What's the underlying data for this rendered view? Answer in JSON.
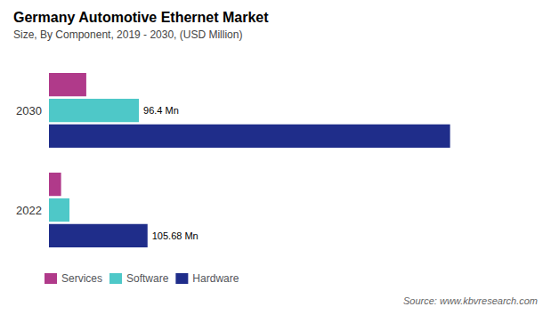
{
  "chart_data": {
    "type": "bar",
    "orientation": "horizontal",
    "title": "Germany Automotive Ethernet Market",
    "subtitle": "Size, By Component, 2019 - 2030, (USD Million)",
    "source": "Source: www.kbvresearch.com",
    "categories": [
      "2022",
      "2030"
    ],
    "series": [
      {
        "name": "Services",
        "color": "#b03a8a",
        "values": [
          13.0,
          40.0
        ]
      },
      {
        "name": "Software",
        "color": "#4ec8c8",
        "values": [
          22.0,
          96.4
        ]
      },
      {
        "name": "Hardware",
        "color": "#1f2d8a",
        "values": [
          105.68,
          430.0
        ]
      }
    ],
    "annotations": [
      {
        "series": "Software",
        "category": "2030",
        "text": "96.4 Mn"
      },
      {
        "series": "Hardware",
        "category": "2022",
        "text": "105.68 Mn"
      }
    ],
    "xlim": [
      0,
      500
    ],
    "tick_labels": "y",
    "grid": false,
    "legend": "bottom"
  }
}
